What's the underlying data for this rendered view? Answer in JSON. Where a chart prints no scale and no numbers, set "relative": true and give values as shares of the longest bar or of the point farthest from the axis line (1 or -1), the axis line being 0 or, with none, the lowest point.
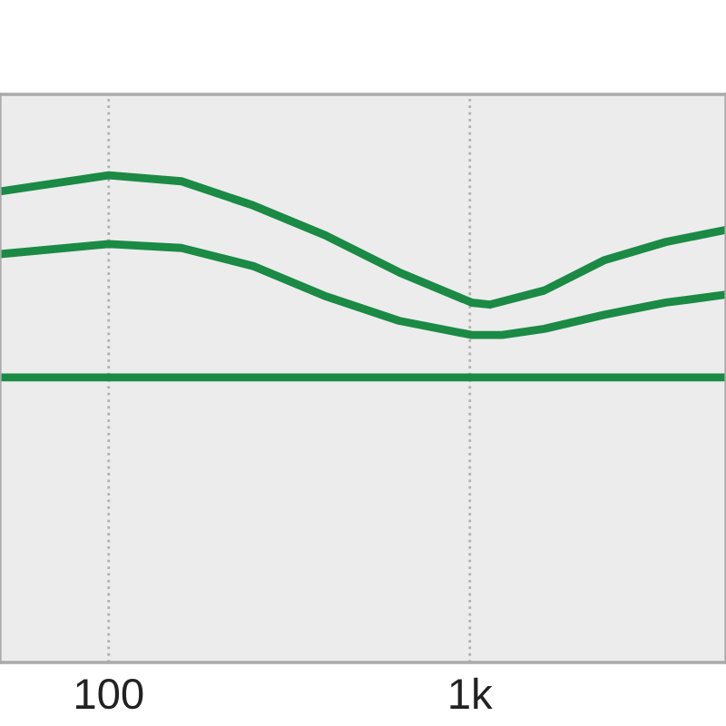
{
  "chart_data": {
    "type": "line",
    "relative": true,
    "log": "x",
    "xlim": [
      50,
      5120
    ],
    "xticks": [
      100,
      {
        "value": 1000,
        "label": "1k"
      }
    ],
    "grid": "x",
    "line_style": "solid",
    "marker": "none",
    "tick_labels": "x",
    "series": [
      {
        "color": "#1a8a45",
        "x": [
          50,
          100,
          159,
          252,
          401,
          637,
          1012,
          1135,
          1607,
          2355,
          3490,
          5120
        ],
        "values": [
          0.92,
          1.0,
          0.97,
          0.85,
          0.7,
          0.52,
          0.37,
          0.36,
          0.43,
          0.58,
          0.67,
          0.73
        ]
      },
      {
        "color": "#1a8a45",
        "x": [
          50,
          100,
          159,
          252,
          401,
          637,
          1012,
          1228,
          1607,
          2355,
          3490,
          5120
        ],
        "values": [
          0.61,
          0.66,
          0.64,
          0.55,
          0.4,
          0.28,
          0.21,
          0.21,
          0.24,
          0.31,
          0.37,
          0.41
        ]
      },
      {
        "color": "#1a8a45",
        "x": [
          50,
          5120
        ],
        "values": [
          0,
          0
        ]
      }
    ]
  }
}
